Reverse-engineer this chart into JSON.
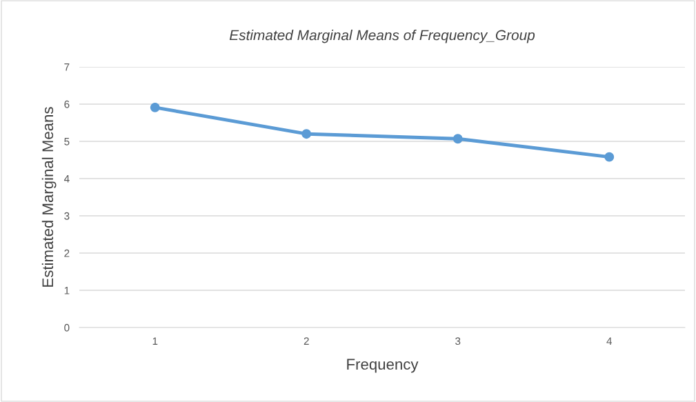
{
  "chart_data": {
    "type": "line",
    "title": "Estimated Marginal Means of Frequency_Group",
    "xlabel": "Frequency",
    "ylabel": "Estimated Marginal Means",
    "categories": [
      "1",
      "2",
      "3",
      "4"
    ],
    "series": [
      {
        "color": "#5b9bd5",
        "values": [
          5.91,
          5.2,
          5.07,
          4.58
        ]
      }
    ],
    "ylim": [
      0,
      7
    ],
    "yticks": [
      0,
      1,
      2,
      3,
      4,
      5,
      6,
      7
    ],
    "grid": "y",
    "marker": "circle",
    "line_style": "solid",
    "legend": false
  }
}
